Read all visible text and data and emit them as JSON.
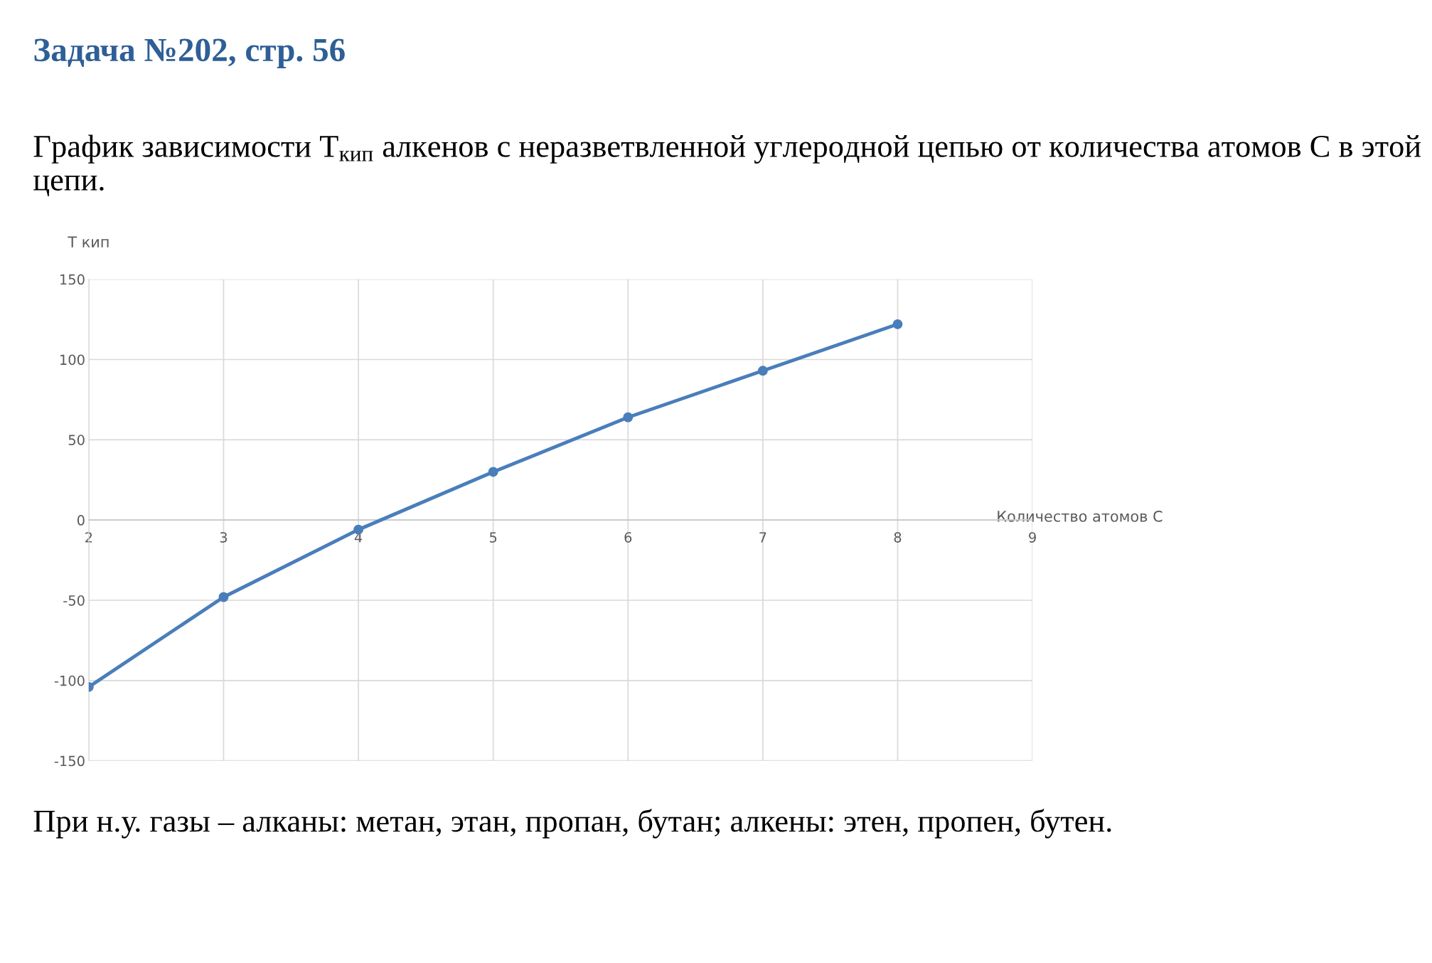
{
  "chart_data": {
    "type": "line",
    "title": "Задача №202, стр. 56",
    "subtitle": "График зависимости T$_{кип}$ алкенов с неразветвленной углеродной цепью от количества атомов C в этой цепи.",
    "xlabel": "Количество атомов C",
    "ylabel": "T кип",
    "annotations": [
      "При н.у. газы – алканы: метан, этан, пропан, бутан; алкены: этен, пропен, бутен."
    ],
    "x": [
      2,
      3,
      4,
      5,
      6,
      7,
      8
    ],
    "series": [
      {
        "color": "#4a7ebb",
        "values": [
          -104,
          -48,
          -6,
          30,
          64,
          93,
          122
        ]
      }
    ],
    "xlim": [
      2,
      9
    ],
    "xticks": [
      2,
      3,
      4,
      5,
      6,
      7,
      8,
      9
    ],
    "ylim": [
      -150,
      150
    ],
    "yticks": [
      -150,
      -100,
      -50,
      0,
      50,
      100,
      150
    ],
    "grid": true,
    "marker": "circle",
    "line_style": "solid",
    "legend": false
  }
}
